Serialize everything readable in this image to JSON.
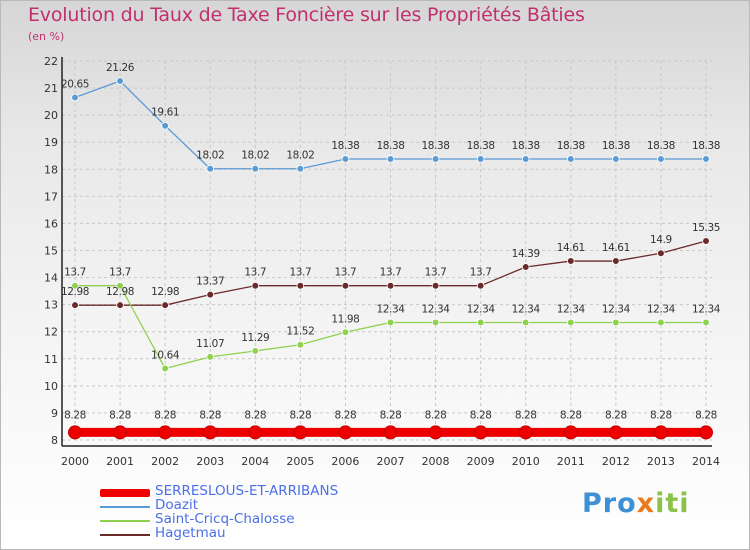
{
  "chart_data": {
    "type": "line",
    "title": "Evolution du Taux de Taxe Foncière sur les Propriétés Bâties",
    "subtitle": "(en %)",
    "categories": [
      "2000",
      "2001",
      "2002",
      "2003",
      "2004",
      "2005",
      "2006",
      "2007",
      "2008",
      "2009",
      "2010",
      "2011",
      "2012",
      "2013",
      "2014"
    ],
    "ylim": [
      8,
      22
    ],
    "yticks": [
      "8",
      "9",
      "10",
      "11",
      "12",
      "13",
      "14",
      "15",
      "16",
      "17",
      "18",
      "19",
      "20",
      "21",
      "22"
    ],
    "series": [
      {
        "name": "SERRESLOUS-ET-ARRIBANS",
        "color": "#ee0000",
        "values": [
          8.28,
          8.28,
          8.28,
          8.28,
          8.28,
          8.28,
          8.28,
          8.28,
          8.28,
          8.28,
          8.28,
          8.28,
          8.28,
          8.28,
          8.28
        ],
        "labels": [
          "8.28",
          "8.28",
          "8.28",
          "8.28",
          "8.28",
          "8.28",
          "8.28",
          "8.28",
          "8.28",
          "8.28",
          "8.28",
          "8.28",
          "8.28",
          "8.28",
          "8.28"
        ]
      },
      {
        "name": "Doazit",
        "color": "#5b9bd5",
        "values": [
          20.65,
          21.26,
          19.61,
          18.02,
          18.02,
          18.02,
          18.38,
          18.38,
          18.38,
          18.38,
          18.38,
          18.38,
          18.38,
          18.38,
          18.38
        ],
        "labels": [
          "20.65",
          "21.26",
          "19.61",
          "18.02",
          "18.02",
          "18.02",
          "18.38",
          "18.38",
          "18.38",
          "18.38",
          "18.38",
          "18.38",
          "18.38",
          "18.38",
          "18.38"
        ]
      },
      {
        "name": "Saint-Cricq-Chalosse",
        "color": "#8fd14f",
        "values": [
          13.7,
          13.7,
          10.64,
          11.07,
          11.29,
          11.52,
          11.98,
          12.34,
          12.34,
          12.34,
          12.34,
          12.34,
          12.34,
          12.34,
          12.34
        ],
        "labels": [
          "13.7",
          "13.7",
          "10.64",
          "11.07",
          "11.29",
          "11.52",
          "11.98",
          "12.34",
          "12.34",
          "12.34",
          "12.34",
          "12.34",
          "12.34",
          "12.34",
          "12.34"
        ]
      },
      {
        "name": "Hagetmau",
        "color": "#6b2a2a",
        "values": [
          12.98,
          12.98,
          12.98,
          13.37,
          13.7,
          13.7,
          13.7,
          13.7,
          13.7,
          13.7,
          14.39,
          14.61,
          14.61,
          14.9,
          15.35
        ],
        "labels": [
          "12.98",
          "12.98",
          "12.98",
          "13.37",
          "13.7",
          "13.7",
          "13.7",
          "13.7",
          "13.7",
          "13.7",
          "14.39",
          "14.61",
          "14.61",
          "14.9",
          "15.35"
        ]
      }
    ]
  },
  "legend": {
    "items": [
      {
        "label": "SERRESLOUS-ET-ARRIBANS",
        "color": "#ee0000"
      },
      {
        "label": "Doazit",
        "color": "#5b9bd5"
      },
      {
        "label": "Saint-Cricq-Chalosse",
        "color": "#8fd14f"
      },
      {
        "label": "Hagetmau",
        "color": "#6b2a2a"
      }
    ]
  },
  "logo": {
    "part1": "Pro",
    "part2": "x",
    "part3": "iti"
  }
}
